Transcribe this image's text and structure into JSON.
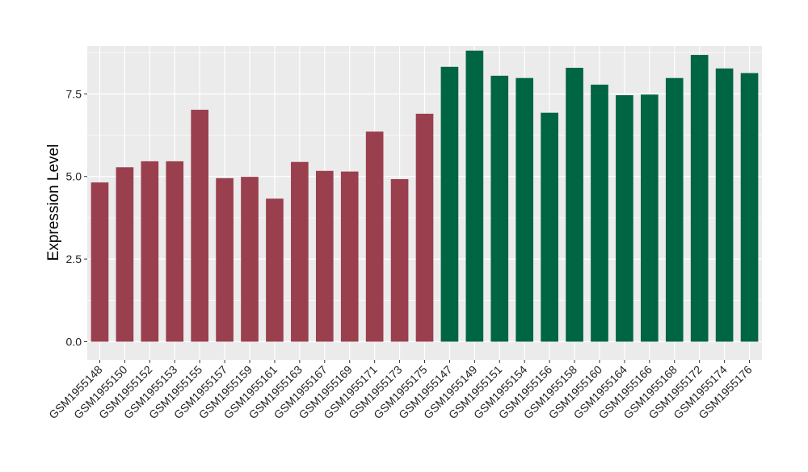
{
  "chart_data": {
    "type": "bar",
    "title": "",
    "xlabel": "",
    "ylabel": "Expression Level",
    "ylim": [
      -0.55,
      8.95
    ],
    "yticks": [
      0.0,
      2.5,
      5.0,
      7.5
    ],
    "ytick_labels": [
      "0.0",
      "2.5",
      "5.0",
      "7.5"
    ],
    "grid": true,
    "legend": "none",
    "colors": {
      "group1": "#9a3f4e",
      "group2": "#006542",
      "panel": "#ebebeb",
      "grid": "#ffffff"
    },
    "categories": [
      "GSM1955148",
      "GSM1955150",
      "GSM1955152",
      "GSM1955153",
      "GSM1955155",
      "GSM1955157",
      "GSM1955159",
      "GSM1955161",
      "GSM1955163",
      "GSM1955167",
      "GSM1955169",
      "GSM1955171",
      "GSM1955173",
      "GSM1955175",
      "GSM1955147",
      "GSM1955149",
      "GSM1955151",
      "GSM1955154",
      "GSM1955156",
      "GSM1955158",
      "GSM1955160",
      "GSM1955164",
      "GSM1955166",
      "GSM1955168",
      "GSM1955172",
      "GSM1955174",
      "GSM1955176"
    ],
    "values": [
      4.82,
      5.28,
      5.46,
      5.46,
      7.02,
      4.95,
      4.99,
      4.33,
      5.44,
      5.17,
      5.15,
      6.36,
      4.92,
      6.9,
      8.32,
      8.81,
      8.05,
      7.98,
      6.93,
      8.29,
      7.78,
      7.46,
      7.48,
      7.98,
      8.68,
      8.27,
      8.13
    ],
    "bar_groups": [
      "group1",
      "group1",
      "group1",
      "group1",
      "group1",
      "group1",
      "group1",
      "group1",
      "group1",
      "group1",
      "group1",
      "group1",
      "group1",
      "group1",
      "group2",
      "group2",
      "group2",
      "group2",
      "group2",
      "group2",
      "group2",
      "group2",
      "group2",
      "group2",
      "group2",
      "group2",
      "group2"
    ]
  }
}
